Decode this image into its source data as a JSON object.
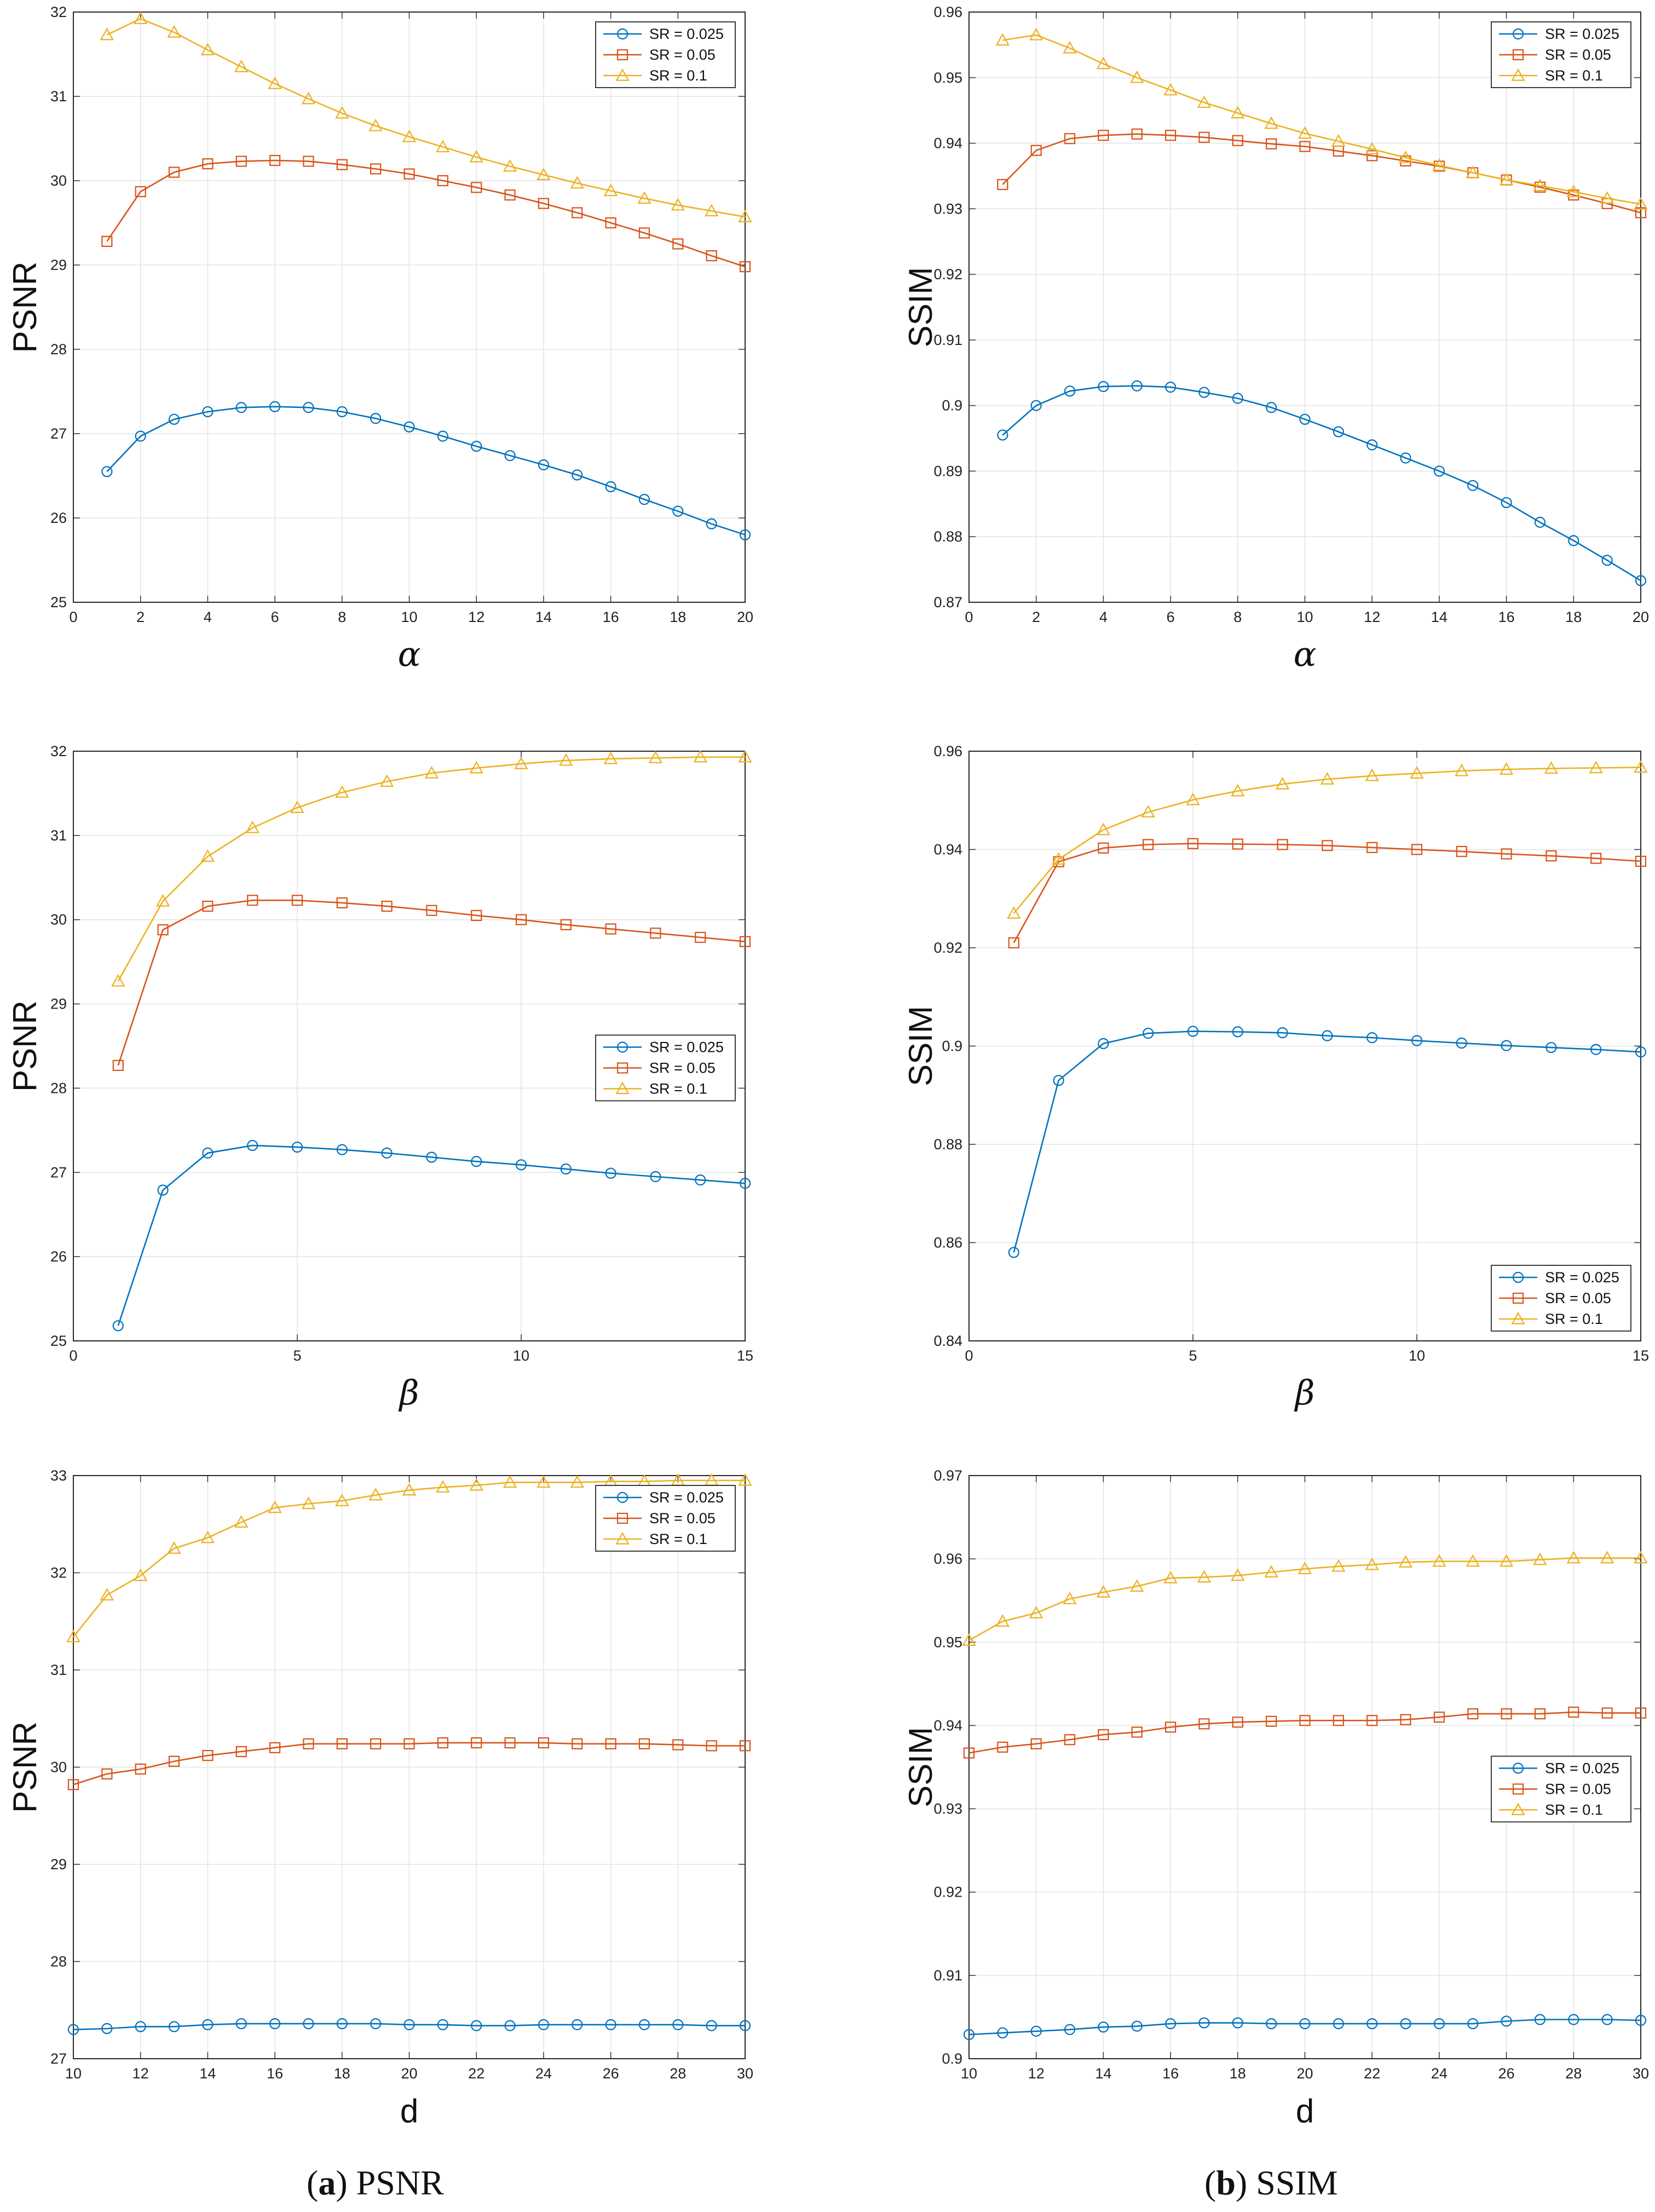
{
  "colors": {
    "SR = 0.025": "#0072BD",
    "SR = 0.05": "#D95319",
    "SR = 0.1": "#EDB120"
  },
  "captions": [
    {
      "letter": "a",
      "text": "PSNR"
    },
    {
      "letter": "b",
      "text": "SSIM"
    }
  ],
  "chart_data": [
    {
      "type": "line",
      "panel": "a-1",
      "xlabel": "α",
      "ylabel": "PSNR",
      "xlim": [
        0,
        20
      ],
      "ylim": [
        25,
        32
      ],
      "xticks": [
        0,
        2,
        4,
        6,
        8,
        10,
        12,
        14,
        16,
        18,
        20
      ],
      "yticks": [
        25,
        26,
        27,
        28,
        29,
        30,
        31,
        32
      ],
      "decimals": 0,
      "legend": "top-right",
      "grid": true,
      "x": [
        1,
        2,
        3,
        4,
        5,
        6,
        7,
        8,
        9,
        10,
        11,
        12,
        13,
        14,
        15,
        16,
        17,
        18,
        19,
        20
      ],
      "series": [
        {
          "name": "SR = 0.025",
          "marker": "circle",
          "values": [
            26.55,
            26.97,
            27.17,
            27.26,
            27.31,
            27.32,
            27.31,
            27.26,
            27.18,
            27.08,
            26.97,
            26.85,
            26.74,
            26.63,
            26.51,
            26.37,
            26.22,
            26.08,
            25.93,
            25.8
          ]
        },
        {
          "name": "SR = 0.05",
          "marker": "square",
          "values": [
            29.28,
            29.87,
            30.1,
            30.2,
            30.23,
            30.24,
            30.23,
            30.19,
            30.14,
            30.08,
            30.0,
            29.92,
            29.83,
            29.73,
            29.62,
            29.5,
            29.38,
            29.25,
            29.11,
            28.98
          ]
        },
        {
          "name": "SR = 0.1",
          "marker": "triangle",
          "values": [
            31.73,
            31.92,
            31.76,
            31.55,
            31.35,
            31.15,
            30.97,
            30.8,
            30.65,
            30.52,
            30.4,
            30.28,
            30.17,
            30.07,
            29.97,
            29.88,
            29.79,
            29.71,
            29.64,
            29.57
          ]
        }
      ]
    },
    {
      "type": "line",
      "panel": "b-1",
      "xlabel": "α",
      "ylabel": "SSIM",
      "xlim": [
        0,
        20
      ],
      "ylim": [
        0.87,
        0.96
      ],
      "xticks": [
        0,
        2,
        4,
        6,
        8,
        10,
        12,
        14,
        16,
        18,
        20
      ],
      "yticks": [
        0.87,
        0.88,
        0.89,
        0.9,
        0.91,
        0.92,
        0.93,
        0.94,
        0.95,
        0.96
      ],
      "decimals": 2,
      "legend": "top-right",
      "grid": true,
      "x": [
        1,
        2,
        3,
        4,
        5,
        6,
        7,
        8,
        9,
        10,
        11,
        12,
        13,
        14,
        15,
        16,
        17,
        18,
        19,
        20
      ],
      "series": [
        {
          "name": "SR = 0.025",
          "marker": "circle",
          "values": [
            0.8955,
            0.9,
            0.9022,
            0.9029,
            0.903,
            0.9028,
            0.902,
            0.9011,
            0.8997,
            0.8979,
            0.896,
            0.894,
            0.892,
            0.89,
            0.8878,
            0.8852,
            0.8822,
            0.8794,
            0.8764,
            0.8733
          ]
        },
        {
          "name": "SR = 0.05",
          "marker": "square",
          "values": [
            0.9337,
            0.9389,
            0.9407,
            0.9412,
            0.9414,
            0.9412,
            0.9409,
            0.9404,
            0.9399,
            0.9395,
            0.9388,
            0.9381,
            0.9373,
            0.9365,
            0.9355,
            0.9344,
            0.9333,
            0.9321,
            0.9308,
            0.9294
          ]
        },
        {
          "name": "SR = 0.1",
          "marker": "triangle",
          "values": [
            0.9557,
            0.9565,
            0.9545,
            0.9521,
            0.95,
            0.9481,
            0.9462,
            0.9446,
            0.943,
            0.9415,
            0.9403,
            0.9391,
            0.9378,
            0.9366,
            0.9355,
            0.9344,
            0.9335,
            0.9326,
            0.9316,
            0.9307
          ]
        }
      ]
    },
    {
      "type": "line",
      "panel": "a-2",
      "xlabel": "β",
      "ylabel": "PSNR",
      "xlim": [
        0,
        15
      ],
      "ylim": [
        25,
        32
      ],
      "xticks": [
        0,
        5,
        10,
        15
      ],
      "yticks": [
        25,
        26,
        27,
        28,
        29,
        30,
        31,
        32
      ],
      "decimals": 0,
      "legend": "center-right",
      "grid": true,
      "x": [
        1,
        2,
        3,
        4,
        5,
        6,
        7,
        8,
        9,
        10,
        11,
        12,
        13,
        14,
        15
      ],
      "series": [
        {
          "name": "SR = 0.025",
          "marker": "circle",
          "values": [
            25.18,
            26.79,
            27.23,
            27.32,
            27.3,
            27.27,
            27.23,
            27.18,
            27.13,
            27.09,
            27.04,
            26.99,
            26.95,
            26.91,
            26.87
          ]
        },
        {
          "name": "SR = 0.05",
          "marker": "square",
          "values": [
            28.27,
            29.88,
            30.16,
            30.23,
            30.23,
            30.2,
            30.16,
            30.11,
            30.05,
            30.0,
            29.94,
            29.89,
            29.84,
            29.79,
            29.74
          ]
        },
        {
          "name": "SR = 0.1",
          "marker": "triangle",
          "values": [
            29.27,
            30.22,
            30.75,
            31.09,
            31.33,
            31.51,
            31.64,
            31.74,
            31.8,
            31.85,
            31.89,
            31.91,
            31.92,
            31.93,
            31.93
          ]
        }
      ]
    },
    {
      "type": "line",
      "panel": "b-2",
      "xlabel": "β",
      "ylabel": "SSIM",
      "xlim": [
        0,
        15
      ],
      "ylim": [
        0.84,
        0.96
      ],
      "xticks": [
        0,
        5,
        10,
        15
      ],
      "yticks": [
        0.84,
        0.86,
        0.88,
        0.9,
        0.92,
        0.94,
        0.96
      ],
      "decimals": 2,
      "legend": "bottom-right",
      "grid": true,
      "x": [
        1,
        2,
        3,
        4,
        5,
        6,
        7,
        8,
        9,
        10,
        11,
        12,
        13,
        14,
        15
      ],
      "series": [
        {
          "name": "SR = 0.025",
          "marker": "circle",
          "values": [
            0.858,
            0.893,
            0.9005,
            0.9026,
            0.903,
            0.9029,
            0.9027,
            0.9021,
            0.9017,
            0.9011,
            0.9006,
            0.9001,
            0.8997,
            0.8993,
            0.8988
          ]
        },
        {
          "name": "SR = 0.05",
          "marker": "square",
          "values": [
            0.921,
            0.9375,
            0.9403,
            0.941,
            0.9412,
            0.9411,
            0.941,
            0.9408,
            0.9404,
            0.94,
            0.9396,
            0.9391,
            0.9387,
            0.9382,
            0.9376
          ]
        },
        {
          "name": "SR = 0.1",
          "marker": "triangle",
          "values": [
            0.927,
            0.938,
            0.944,
            0.9476,
            0.9501,
            0.9519,
            0.9533,
            0.9543,
            0.955,
            0.9555,
            0.956,
            0.9563,
            0.9565,
            0.9566,
            0.9567
          ]
        }
      ]
    },
    {
      "type": "line",
      "panel": "a-3",
      "xlabel": "d",
      "ylabel": "PSNR",
      "xlim": [
        10,
        30
      ],
      "ylim": [
        27,
        33
      ],
      "xticks": [
        10,
        12,
        14,
        16,
        18,
        20,
        22,
        24,
        26,
        28,
        30
      ],
      "yticks": [
        27,
        28,
        29,
        30,
        31,
        32,
        33
      ],
      "decimals": 0,
      "legend": "top-right",
      "grid": true,
      "x": [
        10,
        11,
        12,
        13,
        14,
        15,
        16,
        17,
        18,
        19,
        20,
        21,
        22,
        23,
        24,
        25,
        26,
        27,
        28,
        29,
        30
      ],
      "series": [
        {
          "name": "SR = 0.025",
          "marker": "circle",
          "values": [
            27.3,
            27.31,
            27.33,
            27.33,
            27.35,
            27.36,
            27.36,
            27.36,
            27.36,
            27.36,
            27.35,
            27.35,
            27.34,
            27.34,
            27.35,
            27.35,
            27.35,
            27.35,
            27.35,
            27.34,
            27.34
          ]
        },
        {
          "name": "SR = 0.05",
          "marker": "square",
          "values": [
            29.82,
            29.93,
            29.98,
            30.06,
            30.12,
            30.16,
            30.2,
            30.24,
            30.24,
            30.24,
            30.24,
            30.25,
            30.25,
            30.25,
            30.25,
            30.24,
            30.24,
            30.24,
            30.23,
            30.22,
            30.22
          ]
        },
        {
          "name": "SR = 0.1",
          "marker": "triangle",
          "values": [
            31.34,
            31.77,
            31.97,
            32.25,
            32.36,
            32.52,
            32.67,
            32.71,
            32.74,
            32.8,
            32.85,
            32.88,
            32.9,
            32.93,
            32.93,
            32.93,
            32.94,
            32.94,
            32.95,
            32.95,
            32.95
          ]
        }
      ]
    },
    {
      "type": "line",
      "panel": "b-3",
      "xlabel": "d",
      "ylabel": "SSIM",
      "xlim": [
        10,
        30
      ],
      "ylim": [
        0.9,
        0.97
      ],
      "xticks": [
        10,
        12,
        14,
        16,
        18,
        20,
        22,
        24,
        26,
        28,
        30
      ],
      "yticks": [
        0.9,
        0.91,
        0.92,
        0.93,
        0.94,
        0.95,
        0.96,
        0.97
      ],
      "decimals": 2,
      "legend": "center-right",
      "grid": true,
      "x": [
        10,
        11,
        12,
        13,
        14,
        15,
        16,
        17,
        18,
        19,
        20,
        21,
        22,
        23,
        24,
        25,
        26,
        27,
        28,
        29,
        30
      ],
      "series": [
        {
          "name": "SR = 0.025",
          "marker": "circle",
          "values": [
            0.9029,
            0.9031,
            0.9033,
            0.9035,
            0.9038,
            0.9039,
            0.9042,
            0.9043,
            0.9043,
            0.9042,
            0.9042,
            0.9042,
            0.9042,
            0.9042,
            0.9042,
            0.9042,
            0.9045,
            0.9047,
            0.9047,
            0.9047,
            0.9046
          ]
        },
        {
          "name": "SR = 0.05",
          "marker": "square",
          "values": [
            0.9367,
            0.9374,
            0.9378,
            0.9383,
            0.9389,
            0.9392,
            0.9398,
            0.9402,
            0.9404,
            0.9405,
            0.9406,
            0.9406,
            0.9406,
            0.9407,
            0.941,
            0.9414,
            0.9414,
            0.9414,
            0.9416,
            0.9415,
            0.9415
          ]
        },
        {
          "name": "SR = 0.1",
          "marker": "triangle",
          "values": [
            0.9502,
            0.9525,
            0.9535,
            0.9552,
            0.956,
            0.9567,
            0.9577,
            0.9578,
            0.958,
            0.9584,
            0.9588,
            0.9591,
            0.9593,
            0.9596,
            0.9597,
            0.9597,
            0.9597,
            0.9599,
            0.9601,
            0.9601,
            0.9601
          ]
        }
      ]
    }
  ]
}
